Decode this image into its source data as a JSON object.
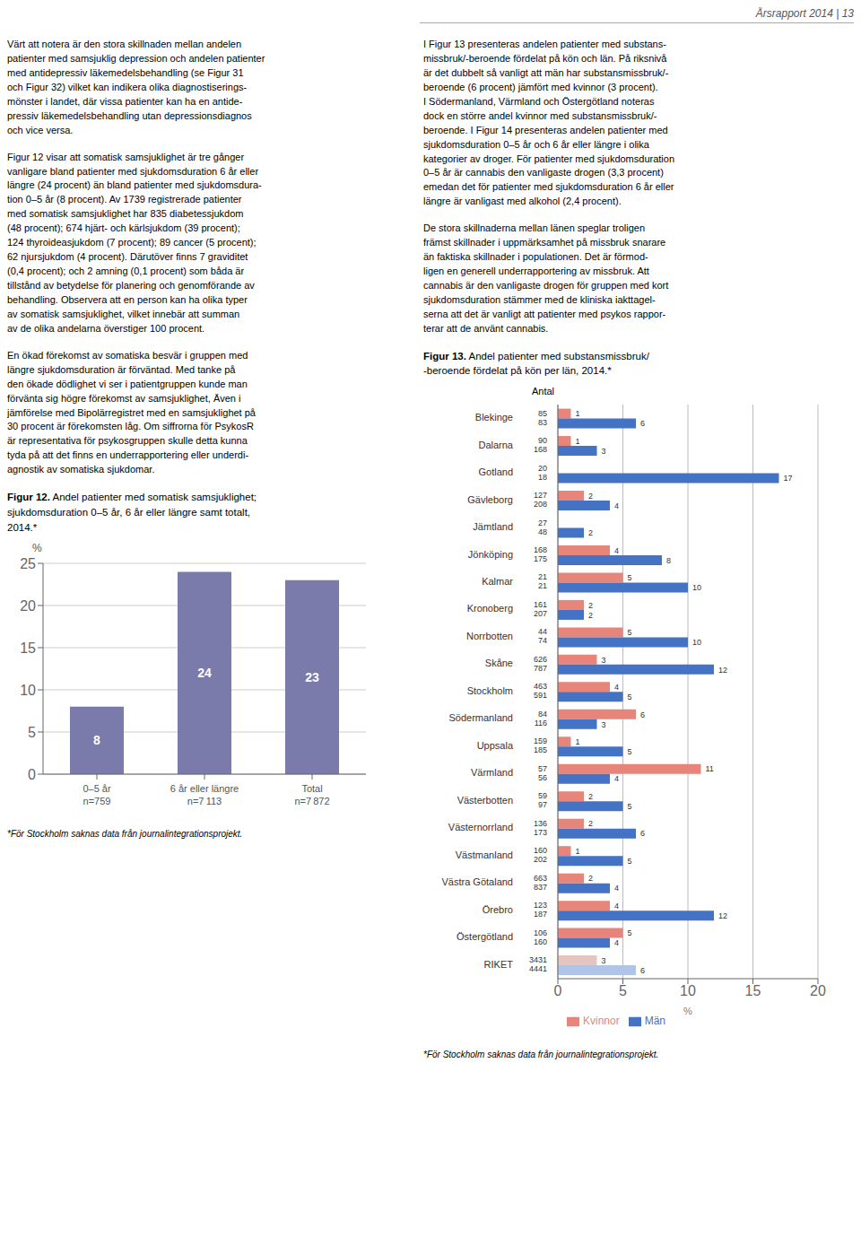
{
  "chart_data": [
    {
      "type": "bar",
      "title": "Figur 12. Andel patienter med somatisk samsjuklighet;\nsjukdomsduration 0–5 år, 6 år eller längre samt totalt,\n2014.*",
      "categories": [
        "0–5 år\nn=759",
        "6 år eller längre\nn=7 113",
        "Total\nn=7 872"
      ],
      "values": [
        8,
        24,
        23
      ],
      "color": "#7b7bab",
      "ylabel": "%",
      "ylim": [
        0,
        25
      ],
      "yticks": [
        0,
        5,
        10,
        15,
        20,
        25
      ],
      "grid": true,
      "data_labels": true,
      "annotations": [
        "Årsrapport 2014 | 13",
        "Värt att notera är den stora skillnaden mellan andelen\npatienter med samsjuklig depression och andelen patienter\nmed antidepressiv läkemedelsbehandling (se Figur 31\noch Figur 32) vilket kan indikera olika diagnostiserings-\nmönster i landet, där vissa patienter kan ha en antide-\npressiv läkemedelsbehandling utan depressionsdiagnos\noch vice versa.",
        "Figur 12 visar att somatisk samsjuklighet är tre gånger\nvanligare bland patienter med sjukdomsduration 6 år eller\nlängre (24 procent) än bland patienter med sjukdomsdura-\ntion 0–5 år (8 procent). Av 1739 registrerade patienter\nmed somatisk samsjuklighet har 835 diabetessjukdom\n(48 procent); 674 hjärt- och kärlsjukdom (39 procent);\n124 thyroideasjukdom (7 procent); 89 cancer (5 procent);\n62 njursjukdom (4 procent). Därutöver finns 7 graviditet\n(0,4 procent); och 2 amning (0,1 procent) som båda är\ntillstånd av betydelse för planering och genomförande av\nbehandling. Observera att en person kan ha olika typer\nav somatisk samsjuklighet, vilket innebär att summan\nav de olika andelarna överstiger 100 procent.",
        "En ökad förekomst av somatiska besvär i gruppen med\nlängre sjukdomsduration är förväntad. Med tanke på\nden ökade dödlighet vi ser i patientgruppen kunde man\nförvänta sig högre förekomst av samsjuklighet, Även i\njämförelse med Bipolärregistret med en samsjuklighet på\n30 procent är förekomsten låg. Om siffrorna för PsykosR\när representativa för psykosgruppen skulle detta kunna\ntyda på att det finns en underrapportering eller underdi-\nagnostik av somatiska sjukdomar.",
        "*För Stockholm saknas data från journalintegrationsprojekt."
      ]
    },
    {
      "type": "bar",
      "orientation": "horizontal",
      "title": "Figur 13. Andel patienter med substansmissbruk/\n-beroende fördelat på kön per län, 2014.*",
      "categories": [
        "Blekinge",
        "Dalarna",
        "Gotland",
        "Gävleborg",
        "Jämtland",
        "Jönköping",
        "Kalmar",
        "Kronoberg",
        "Norrbotten",
        "Skåne",
        "Stockholm",
        "Södermanland",
        "Uppsala",
        "Värmland",
        "Västerbotten",
        "Västernorrland",
        "Västmanland",
        "Västra Götaland",
        "Örebro",
        "Östergötland",
        "RIKET"
      ],
      "series": [
        {
          "name": "Kvinnor",
          "color": "#e8857a",
          "colors": [
            "#e8857a",
            "#e8857a",
            "#e8857a",
            "#e8857a",
            "#e8857a",
            "#e8857a",
            "#e8857a",
            "#e8857a",
            "#e8857a",
            "#e8857a",
            "#e8857a",
            "#e8857a",
            "#e8857a",
            "#e8857a",
            "#e8857a",
            "#e8857a",
            "#e8857a",
            "#e8857a",
            "#e8857a",
            "#e8857a",
            "#e8c4c0"
          ],
          "values": [
            1,
            1,
            0,
            2,
            0,
            4,
            5,
            2,
            5,
            3,
            4,
            6,
            1,
            11,
            2,
            2,
            1,
            2,
            4,
            5,
            3
          ],
          "n": [
            85,
            90,
            20,
            127,
            27,
            168,
            21,
            161,
            44,
            626,
            463,
            84,
            159,
            57,
            59,
            136,
            160,
            663,
            123,
            106,
            3431
          ]
        },
        {
          "name": "Män",
          "color": "#4472c4",
          "colors": [
            "#4472c4",
            "#4472c4",
            "#4472c4",
            "#4472c4",
            "#4472c4",
            "#4472c4",
            "#4472c4",
            "#4472c4",
            "#4472c4",
            "#4472c4",
            "#4472c4",
            "#4472c4",
            "#4472c4",
            "#4472c4",
            "#4472c4",
            "#4472c4",
            "#4472c4",
            "#4472c4",
            "#4472c4",
            "#4472c4",
            "#b0c4e8"
          ],
          "values": [
            6,
            3,
            17,
            4,
            2,
            8,
            10,
            2,
            10,
            12,
            5,
            3,
            5,
            4,
            5,
            6,
            5,
            4,
            12,
            4,
            6
          ],
          "n": [
            83,
            168,
            18,
            208,
            48,
            175,
            21,
            207,
            74,
            787,
            591,
            116,
            185,
            56,
            97,
            173,
            202,
            837,
            187,
            160,
            4441
          ]
        }
      ],
      "xlabel": "%",
      "xlim": [
        0,
        20
      ],
      "xticks": [
        0,
        5,
        10,
        15,
        20
      ],
      "grid": true,
      "data_labels": true,
      "legend": "bottom",
      "annotations": [
        "I Figur 13 presenteras andelen patienter med substans-\nmissbruk/-beroende fördelat på kön och län. På riksnivå\när det dubbelt så vanligt att män har substansmissbruk/-\nberoende (6 procent) jämfört med kvinnor (3 procent).\nI Södermanland, Värmland och Östergötland noteras\ndock en större andel kvinnor med substansmissbruk/-\nberoende. I Figur 14 presenteras andelen patienter med\nsjukdomsduration 0–5 år och 6 år eller längre i olika\nkategorier av droger. För patienter med sjukdomsduration\n0–5 år är cannabis den vanligaste drogen (3,3 procent)\nemedan det för patienter med sjukdomsduration 6 år eller\nlängre är vanligast med alkohol (2,4 procent).",
        "De stora skillnaderna mellan länen speglar troligen\nfrämst skillnader i uppmärksamhet på missbruk snarare\nän faktiska skillnader i populationen. Det är förmod-\nligen en generell underrapportering av missbruk. Att\ncannabis är den vanligaste drogen för gruppen med kort\nsjukdomsduration stämmer med de kliniska iakttagel-\nserna att det är vanligt att patienter med psykos rappor-\nterar att de använt cannabis.",
        "Antal",
        "*För Stockholm saknas data från journalintegrationsprojekt."
      ]
    }
  ]
}
